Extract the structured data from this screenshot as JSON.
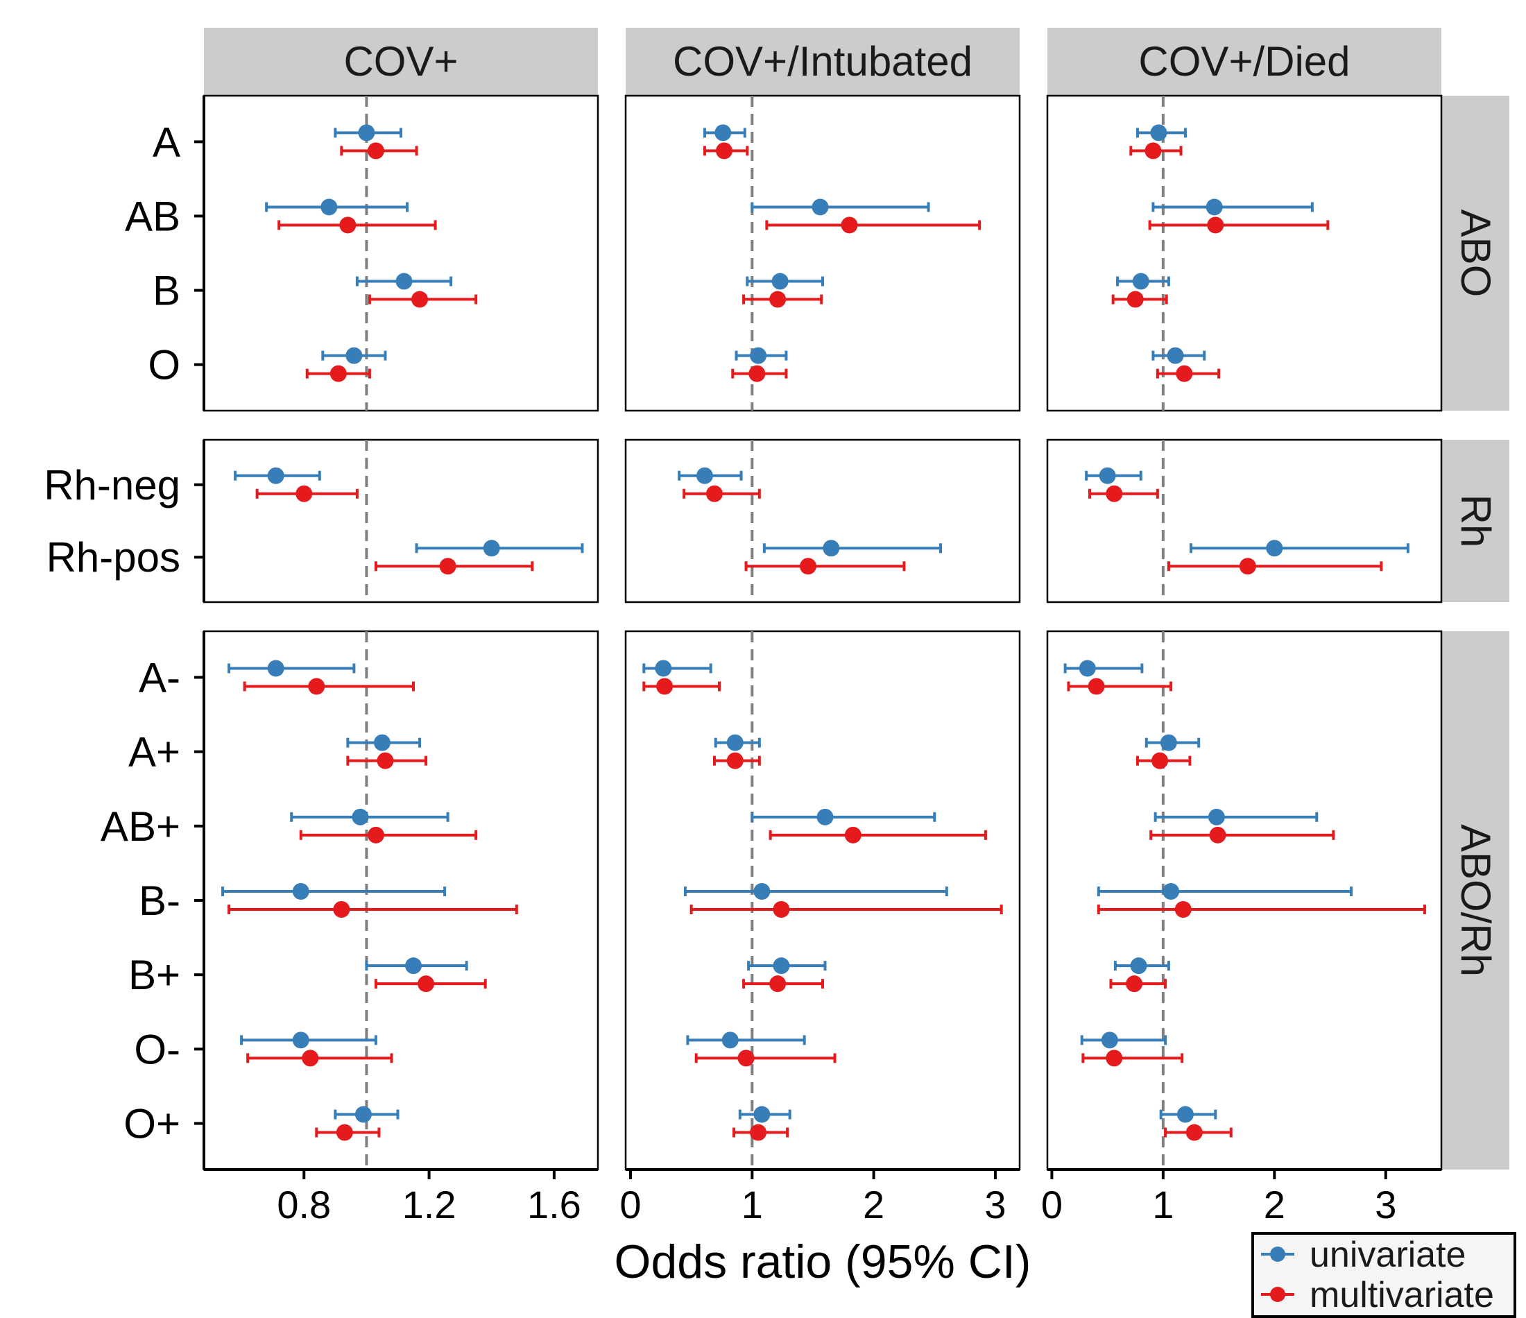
{
  "chart_data": {
    "type": "forest",
    "xlabel": "Odds ratio (95% CI)",
    "reference_line": 1,
    "columns": [
      {
        "label": "COV+",
        "xlim": [
          0.48,
          1.74
        ],
        "ticks": [
          0.8,
          1.2,
          1.6
        ],
        "tick_labels": [
          "0.8",
          "1.2",
          "1.6"
        ]
      },
      {
        "label": "COV+/Intubated",
        "xlim": [
          -0.04,
          3.2
        ],
        "ticks": [
          0,
          1,
          2,
          3
        ],
        "tick_labels": [
          "0",
          "1",
          "2",
          "3"
        ]
      },
      {
        "label": "COV+/Died",
        "xlim": [
          -0.04,
          3.5
        ],
        "ticks": [
          0,
          1,
          2,
          3
        ],
        "tick_labels": [
          "0",
          "1",
          "2",
          "3"
        ]
      }
    ],
    "rows": [
      {
        "label": "ABO",
        "categories": [
          "A",
          "AB",
          "B",
          "O"
        ]
      },
      {
        "label": "Rh",
        "categories": [
          "Rh-neg",
          "Rh-pos"
        ]
      },
      {
        "label": "ABO/Rh",
        "categories": [
          "A-",
          "A+",
          "AB+",
          "B-",
          "B+",
          "O-",
          "O+"
        ]
      }
    ],
    "series": [
      {
        "name": "univariate",
        "color": "#377EB8",
        "values": [
          [
            [
              [
                1.0,
                0.9,
                1.11
              ],
              [
                0.88,
                0.68,
                1.13
              ],
              [
                1.12,
                0.97,
                1.27
              ],
              [
                0.96,
                0.86,
                1.06
              ]
            ],
            [
              [
                0.71,
                0.58,
                0.85
              ],
              [
                1.4,
                1.16,
                1.69
              ]
            ],
            [
              [
                0.71,
                0.56,
                0.96
              ],
              [
                1.05,
                0.94,
                1.17
              ],
              [
                0.98,
                0.76,
                1.26
              ],
              [
                0.79,
                0.54,
                1.25
              ],
              [
                1.15,
                1.0,
                1.32
              ],
              [
                0.79,
                0.6,
                1.03
              ],
              [
                0.99,
                0.9,
                1.1
              ]
            ]
          ],
          [
            [
              [
                0.76,
                0.61,
                0.94
              ],
              [
                1.56,
                1.0,
                2.45
              ],
              [
                1.23,
                0.96,
                1.58
              ],
              [
                1.05,
                0.87,
                1.28
              ]
            ],
            [
              [
                0.61,
                0.4,
                0.91
              ],
              [
                1.65,
                1.1,
                2.55
              ]
            ],
            [
              [
                0.27,
                0.11,
                0.66
              ],
              [
                0.86,
                0.7,
                1.06
              ],
              [
                1.6,
                1.0,
                2.5
              ],
              [
                1.08,
                0.45,
                2.6
              ],
              [
                1.24,
                0.97,
                1.6
              ],
              [
                0.82,
                0.47,
                1.43
              ],
              [
                1.08,
                0.9,
                1.31
              ]
            ]
          ],
          [
            [
              [
                0.96,
                0.77,
                1.2
              ],
              [
                1.46,
                0.91,
                2.34
              ],
              [
                0.8,
                0.59,
                1.05
              ],
              [
                1.11,
                0.91,
                1.37
              ]
            ],
            [
              [
                0.5,
                0.31,
                0.8
              ],
              [
                2.0,
                1.25,
                3.2
              ]
            ],
            [
              [
                0.32,
                0.12,
                0.81
              ],
              [
                1.05,
                0.85,
                1.32
              ],
              [
                1.48,
                0.93,
                2.38
              ],
              [
                1.07,
                0.42,
                2.69
              ],
              [
                0.78,
                0.57,
                1.05
              ],
              [
                0.52,
                0.27,
                1.02
              ],
              [
                1.2,
                0.98,
                1.47
              ]
            ]
          ]
        ]
      },
      {
        "name": "multivariate",
        "color": "#E41A1C",
        "values": [
          [
            [
              [
                1.03,
                0.92,
                1.16
              ],
              [
                0.94,
                0.72,
                1.22
              ],
              [
                1.17,
                1.01,
                1.35
              ],
              [
                0.91,
                0.81,
                1.01
              ]
            ],
            [
              [
                0.8,
                0.65,
                0.97
              ],
              [
                1.26,
                1.03,
                1.53
              ]
            ],
            [
              [
                0.84,
                0.61,
                1.15
              ],
              [
                1.06,
                0.94,
                1.19
              ],
              [
                1.03,
                0.79,
                1.35
              ],
              [
                0.92,
                0.56,
                1.48
              ],
              [
                1.19,
                1.03,
                1.38
              ],
              [
                0.82,
                0.62,
                1.08
              ],
              [
                0.93,
                0.84,
                1.04
              ]
            ]
          ],
          [
            [
              [
                0.77,
                0.61,
                0.96
              ],
              [
                1.8,
                1.12,
                2.87
              ],
              [
                1.21,
                0.93,
                1.57
              ],
              [
                1.04,
                0.84,
                1.28
              ]
            ],
            [
              [
                0.69,
                0.44,
                1.06
              ],
              [
                1.46,
                0.95,
                2.25
              ]
            ],
            [
              [
                0.28,
                0.11,
                0.73
              ],
              [
                0.86,
                0.69,
                1.06
              ],
              [
                1.83,
                1.15,
                2.92
              ],
              [
                1.24,
                0.5,
                3.05
              ],
              [
                1.21,
                0.93,
                1.58
              ],
              [
                0.95,
                0.54,
                1.68
              ],
              [
                1.05,
                0.85,
                1.29
              ]
            ]
          ],
          [
            [
              [
                0.91,
                0.71,
                1.16
              ],
              [
                1.47,
                0.88,
                2.48
              ],
              [
                0.75,
                0.55,
                1.03
              ],
              [
                1.19,
                0.95,
                1.5
              ]
            ],
            [
              [
                0.56,
                0.34,
                0.95
              ],
              [
                1.76,
                1.05,
                2.96
              ]
            ],
            [
              [
                0.4,
                0.15,
                1.07
              ],
              [
                0.97,
                0.77,
                1.24
              ],
              [
                1.49,
                0.89,
                2.53
              ],
              [
                1.18,
                0.42,
                3.35
              ],
              [
                0.74,
                0.53,
                1.02
              ],
              [
                0.56,
                0.28,
                1.17
              ],
              [
                1.28,
                1.02,
                1.61
              ]
            ]
          ]
        ]
      }
    ],
    "legend": {
      "position": "bottom-right",
      "entries": [
        "univariate",
        "multivariate"
      ]
    }
  }
}
